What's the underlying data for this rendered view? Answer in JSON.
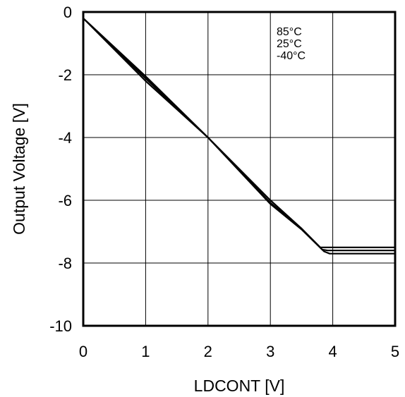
{
  "chart_data": {
    "type": "line",
    "xlabel": "LDCONT [V]",
    "ylabel": "Output Voltage [V]",
    "xlim": [
      0,
      5
    ],
    "ylim": [
      -10,
      0
    ],
    "x_ticks": [
      "0",
      "1",
      "2",
      "3",
      "4",
      "5"
    ],
    "y_ticks": [
      "0",
      "-2",
      "-4",
      "-6",
      "-8",
      "-10"
    ],
    "grid": true,
    "legend_position": "top-right",
    "series": [
      {
        "name": "85°C",
        "x": [
          0,
          1,
          2,
          3,
          3.5,
          3.8,
          3.9,
          5
        ],
        "y": [
          -0.2,
          -2.2,
          -4.0,
          -6.0,
          -6.9,
          -7.5,
          -7.5,
          -7.5
        ]
      },
      {
        "name": "25°C",
        "x": [
          0,
          1,
          2,
          3,
          3.5,
          3.83,
          3.92,
          5
        ],
        "y": [
          -0.2,
          -2.12,
          -4.0,
          -6.08,
          -6.9,
          -7.57,
          -7.6,
          -7.6
        ]
      },
      {
        "name": "-40°C",
        "x": [
          0,
          1,
          2,
          3,
          3.5,
          3.86,
          3.95,
          5
        ],
        "y": [
          -0.2,
          -2.05,
          -4.0,
          -6.12,
          -6.93,
          -7.63,
          -7.7,
          -7.7
        ]
      }
    ]
  }
}
